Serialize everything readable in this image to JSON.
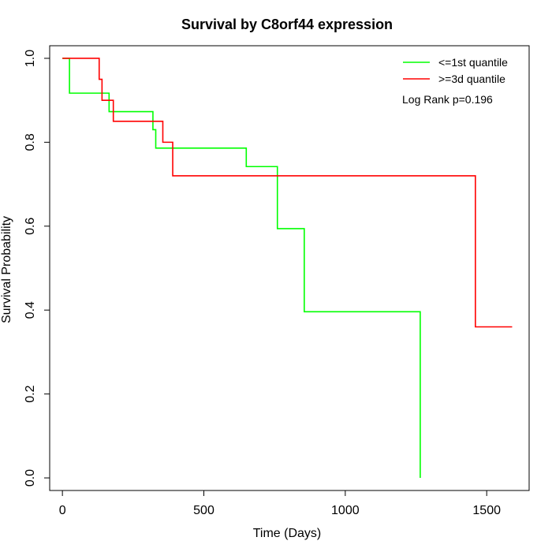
{
  "chart_data": {
    "type": "line",
    "title": "Survival by C8orf44 expression",
    "xlabel": "Time (Days)",
    "ylabel": "Survival Probability",
    "xlim": [
      -45,
      1650
    ],
    "ylim": [
      -0.03,
      1.03
    ],
    "xticks": [
      0,
      500,
      1000,
      1500
    ],
    "yticks": [
      0.0,
      0.2,
      0.4,
      0.6,
      0.8,
      1.0
    ],
    "xtick_labels": [
      "0",
      "500",
      "1000",
      "1500"
    ],
    "ytick_labels": [
      "0.0",
      "0.2",
      "0.4",
      "0.6",
      "0.8",
      "1.0"
    ],
    "grid": false,
    "legend_position": "top-right",
    "annotation": "Log Rank p=0.196",
    "series": [
      {
        "name": "<=1st quantile",
        "color": "#00ff00",
        "step": true,
        "x": [
          0,
          25,
          25,
          155,
          165,
          250,
          320,
          330,
          650,
          760,
          855,
          1265,
          1265
        ],
        "y": [
          1.0,
          1.0,
          0.917,
          0.917,
          0.873,
          0.873,
          0.83,
          0.786,
          0.742,
          0.594,
          0.396,
          0.198,
          0.0
        ]
      },
      {
        "name": ">=3d quantile",
        "color": "#ff0000",
        "step": true,
        "x": [
          0,
          130,
          140,
          180,
          355,
          390,
          1460,
          1590
        ],
        "y": [
          1.0,
          0.95,
          0.9,
          0.85,
          0.8,
          0.72,
          0.36,
          0.36
        ]
      }
    ]
  }
}
